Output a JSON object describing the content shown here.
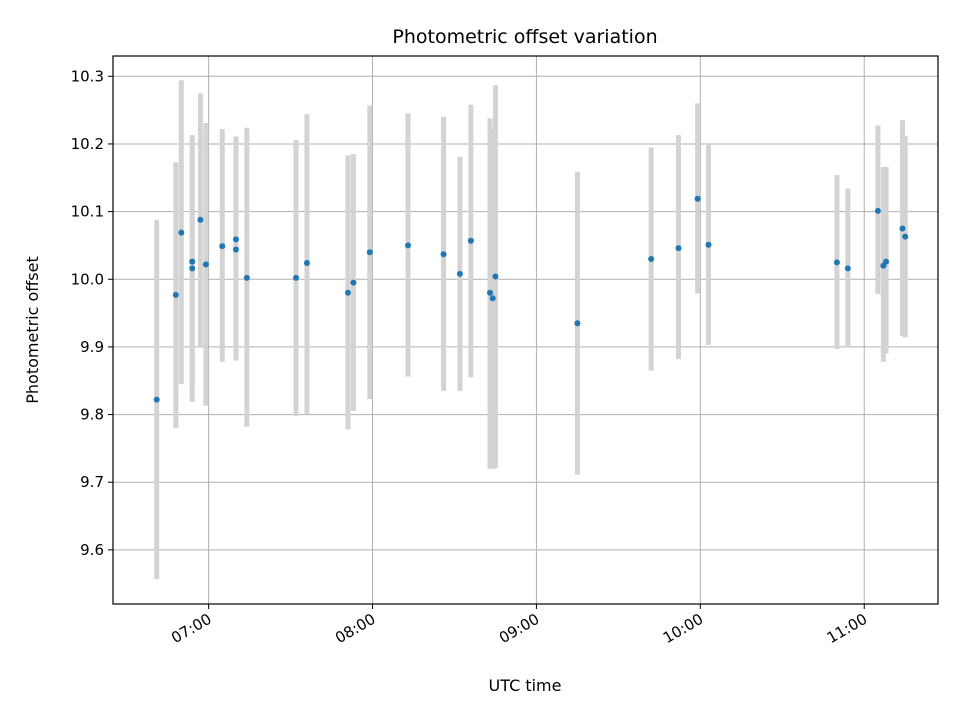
{
  "chart_data": {
    "type": "scatter",
    "title": "Photometric offset variation",
    "xlabel": "UTC time",
    "ylabel": "Photometric offset",
    "xlim": [
      "06:25",
      "11:27"
    ],
    "ylim": [
      9.52,
      10.33
    ],
    "x_ticks": [
      "07:00",
      "08:00",
      "09:00",
      "10:00",
      "11:00"
    ],
    "y_ticks": [
      9.6,
      9.7,
      9.8,
      9.9,
      10.0,
      10.1,
      10.2,
      10.3
    ],
    "grid": true,
    "point_color": "#1f77b4",
    "errorbar_color": "#d3d3d3",
    "points": [
      {
        "t": "06:41",
        "y": 9.822,
        "lo": 9.557,
        "hi": 10.088
      },
      {
        "t": "06:48",
        "y": 9.977,
        "lo": 9.78,
        "hi": 10.173
      },
      {
        "t": "06:50",
        "y": 10.069,
        "lo": 9.845,
        "hi": 10.294
      },
      {
        "t": "06:54",
        "y": 10.026,
        "lo": 9.84,
        "hi": 10.212
      },
      {
        "t": "06:54",
        "y": 10.016,
        "lo": 9.819,
        "hi": 10.213
      },
      {
        "t": "06:57",
        "y": 10.088,
        "lo": 9.901,
        "hi": 10.275
      },
      {
        "t": "06:59",
        "y": 10.022,
        "lo": 9.813,
        "hi": 10.231
      },
      {
        "t": "07:05",
        "y": 10.049,
        "lo": 9.878,
        "hi": 10.222
      },
      {
        "t": "07:10",
        "y": 10.059,
        "lo": 9.907,
        "hi": 10.211
      },
      {
        "t": "07:10",
        "y": 10.044,
        "lo": 9.88,
        "hi": 10.208
      },
      {
        "t": "07:14",
        "y": 10.002,
        "lo": 9.782,
        "hi": 10.224
      },
      {
        "t": "07:32",
        "y": 10.002,
        "lo": 9.798,
        "hi": 10.206
      },
      {
        "t": "07:36",
        "y": 10.024,
        "lo": 9.801,
        "hi": 10.244
      },
      {
        "t": "07:51",
        "y": 9.98,
        "lo": 9.778,
        "hi": 10.183
      },
      {
        "t": "07:53",
        "y": 9.995,
        "lo": 9.805,
        "hi": 10.185
      },
      {
        "t": "07:59",
        "y": 10.04,
        "lo": 9.823,
        "hi": 10.257
      },
      {
        "t": "08:13",
        "y": 10.05,
        "lo": 9.856,
        "hi": 10.245
      },
      {
        "t": "08:26",
        "y": 10.037,
        "lo": 9.835,
        "hi": 10.24
      },
      {
        "t": "08:32",
        "y": 10.008,
        "lo": 9.835,
        "hi": 10.181
      },
      {
        "t": "08:36",
        "y": 10.057,
        "lo": 9.855,
        "hi": 10.258
      },
      {
        "t": "08:43",
        "y": 9.98,
        "lo": 9.72,
        "hi": 10.238
      },
      {
        "t": "08:44",
        "y": 9.972,
        "lo": 9.72,
        "hi": 10.222
      },
      {
        "t": "08:45",
        "y": 10.004,
        "lo": 9.721,
        "hi": 10.287
      },
      {
        "t": "09:15",
        "y": 9.935,
        "lo": 9.711,
        "hi": 10.159
      },
      {
        "t": "09:42",
        "y": 10.03,
        "lo": 9.865,
        "hi": 10.195
      },
      {
        "t": "09:52",
        "y": 10.046,
        "lo": 9.882,
        "hi": 10.213
      },
      {
        "t": "09:59",
        "y": 10.119,
        "lo": 9.979,
        "hi": 10.26
      },
      {
        "t": "10:03",
        "y": 10.051,
        "lo": 9.903,
        "hi": 10.2
      },
      {
        "t": "10:50",
        "y": 10.025,
        "lo": 9.897,
        "hi": 10.154
      },
      {
        "t": "10:54",
        "y": 10.016,
        "lo": 9.899,
        "hi": 10.134
      },
      {
        "t": "11:05",
        "y": 10.101,
        "lo": 9.978,
        "hi": 10.227
      },
      {
        "t": "11:07",
        "y": 10.02,
        "lo": 9.878,
        "hi": 10.166
      },
      {
        "t": "11:08",
        "y": 10.026,
        "lo": 9.89,
        "hi": 10.166
      },
      {
        "t": "11:14",
        "y": 10.075,
        "lo": 9.916,
        "hi": 10.235
      },
      {
        "t": "11:15",
        "y": 10.063,
        "lo": 9.914,
        "hi": 10.212
      }
    ]
  }
}
